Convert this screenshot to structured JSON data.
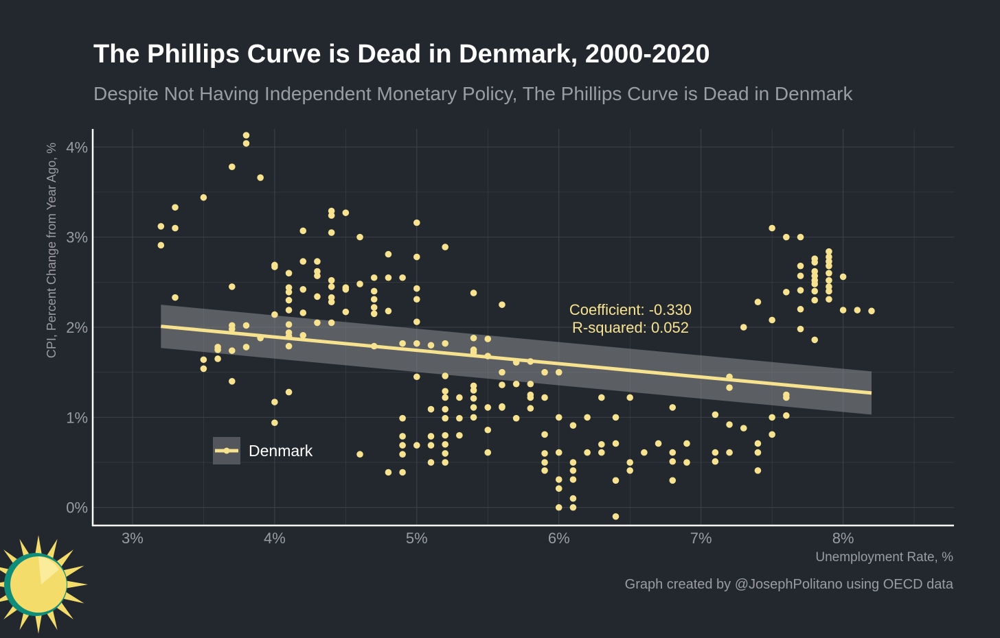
{
  "header": {
    "title": "The Phillips Curve is Dead in Denmark, 2000-2020",
    "subtitle": "Despite Not Having Independent Monetary Policy, The Phillips Curve is Dead in Denmark"
  },
  "footer": {
    "caption": "Graph created by @JosephPolitano using OECD data"
  },
  "logo": {
    "icon": "sun-logo-icon"
  },
  "chart_data": {
    "type": "scatter",
    "xlabel": "Unemployment Rate, %",
    "ylabel": "CPI, Percent Change from Year Ago, %",
    "xlim": [
      2.72,
      8.78
    ],
    "ylim": [
      -0.2,
      4.2
    ],
    "x_ticks": [
      3,
      4,
      5,
      6,
      7,
      8
    ],
    "x_tick_labels": [
      "3%",
      "4%",
      "5%",
      "6%",
      "7%",
      "8%"
    ],
    "y_ticks": [
      0,
      1,
      2,
      3,
      4
    ],
    "y_tick_labels": [
      "0%",
      "1%",
      "2%",
      "3%",
      "4%"
    ],
    "grid": true,
    "colors": {
      "points": "#f7e38f",
      "trend_line": "#f7e38f",
      "confidence_band": "#8a8c8f",
      "annotation_text": "#f7e38f",
      "grid": "#3d424a",
      "tick_text": "#9a9da3",
      "background": "#23272e"
    },
    "legend": {
      "position": "bottom-left",
      "label": "Denmark"
    },
    "annotation": {
      "coefficient": "Coefficient: -0.330",
      "r_squared": "R-squared: 0.052"
    },
    "trend": {
      "x": [
        3.2,
        8.2
      ],
      "y": [
        2.01,
        1.27
      ],
      "band_low": [
        1.77,
        1.03
      ],
      "band_high": [
        2.25,
        1.51
      ]
    },
    "series": [
      {
        "name": "Denmark",
        "points": [
          [
            3.2,
            3.12
          ],
          [
            3.2,
            2.91
          ],
          [
            3.3,
            3.33
          ],
          [
            3.3,
            3.1
          ],
          [
            3.3,
            2.33
          ],
          [
            3.5,
            3.44
          ],
          [
            3.5,
            1.64
          ],
          [
            3.5,
            1.54
          ],
          [
            3.6,
            1.78
          ],
          [
            3.6,
            1.75
          ],
          [
            3.6,
            1.65
          ],
          [
            3.7,
            3.78
          ],
          [
            3.7,
            2.45
          ],
          [
            3.7,
            2.02
          ],
          [
            3.7,
            1.98
          ],
          [
            3.7,
            1.74
          ],
          [
            3.7,
            1.4
          ],
          [
            3.8,
            4.13
          ],
          [
            3.8,
            4.04
          ],
          [
            3.8,
            2.02
          ],
          [
            3.8,
            1.78
          ],
          [
            3.9,
            3.66
          ],
          [
            3.9,
            1.88
          ],
          [
            4.0,
            2.69
          ],
          [
            4.0,
            2.67
          ],
          [
            4.0,
            2.14
          ],
          [
            4.0,
            1.17
          ],
          [
            4.0,
            0.94
          ],
          [
            4.1,
            2.6
          ],
          [
            4.1,
            2.44
          ],
          [
            4.1,
            2.39
          ],
          [
            4.1,
            2.3
          ],
          [
            4.1,
            2.19
          ],
          [
            4.1,
            2.03
          ],
          [
            4.1,
            1.94
          ],
          [
            4.1,
            1.9
          ],
          [
            4.1,
            1.79
          ],
          [
            4.1,
            1.28
          ],
          [
            4.2,
            3.07
          ],
          [
            4.2,
            2.73
          ],
          [
            4.2,
            2.42
          ],
          [
            4.2,
            2.16
          ],
          [
            4.2,
            1.91
          ],
          [
            4.3,
            2.73
          ],
          [
            4.3,
            2.62
          ],
          [
            4.3,
            2.57
          ],
          [
            4.3,
            2.34
          ],
          [
            4.3,
            2.05
          ],
          [
            4.4,
            3.29
          ],
          [
            4.4,
            3.24
          ],
          [
            4.4,
            3.05
          ],
          [
            4.4,
            2.52
          ],
          [
            4.4,
            2.45
          ],
          [
            4.4,
            2.33
          ],
          [
            4.4,
            2.28
          ],
          [
            4.4,
            2.05
          ],
          [
            4.5,
            3.27
          ],
          [
            4.5,
            2.44
          ],
          [
            4.5,
            2.42
          ],
          [
            4.5,
            2.17
          ],
          [
            4.6,
            3.0
          ],
          [
            4.6,
            2.48
          ],
          [
            4.6,
            0.59
          ],
          [
            4.7,
            2.55
          ],
          [
            4.7,
            2.4
          ],
          [
            4.7,
            2.31
          ],
          [
            4.7,
            2.22
          ],
          [
            4.7,
            2.15
          ],
          [
            4.7,
            1.79
          ],
          [
            4.8,
            2.81
          ],
          [
            4.8,
            2.55
          ],
          [
            4.8,
            2.18
          ],
          [
            4.8,
            0.39
          ],
          [
            4.9,
            2.55
          ],
          [
            4.9,
            1.82
          ],
          [
            4.9,
            0.99
          ],
          [
            4.9,
            0.79
          ],
          [
            4.9,
            0.69
          ],
          [
            4.9,
            0.59
          ],
          [
            4.9,
            0.39
          ],
          [
            5.0,
            3.16
          ],
          [
            5.0,
            2.78
          ],
          [
            5.0,
            2.43
          ],
          [
            5.0,
            2.31
          ],
          [
            5.0,
            2.06
          ],
          [
            5.0,
            1.82
          ],
          [
            5.0,
            1.45
          ],
          [
            5.0,
            0.69
          ],
          [
            5.1,
            1.8
          ],
          [
            5.1,
            1.09
          ],
          [
            5.1,
            0.79
          ],
          [
            5.1,
            0.69
          ],
          [
            5.1,
            0.5
          ],
          [
            5.2,
            2.89
          ],
          [
            5.2,
            1.82
          ],
          [
            5.2,
            1.46
          ],
          [
            5.2,
            1.29
          ],
          [
            5.2,
            1.22
          ],
          [
            5.2,
            1.09
          ],
          [
            5.2,
            0.99
          ],
          [
            5.2,
            0.8
          ],
          [
            5.2,
            0.7
          ],
          [
            5.2,
            0.6
          ],
          [
            5.2,
            0.5
          ],
          [
            5.3,
            1.22
          ],
          [
            5.3,
            0.99
          ],
          [
            5.3,
            0.8
          ],
          [
            5.4,
            2.38
          ],
          [
            5.4,
            1.88
          ],
          [
            5.4,
            1.75
          ],
          [
            5.4,
            1.72
          ],
          [
            5.4,
            1.35
          ],
          [
            5.4,
            1.3
          ],
          [
            5.4,
            1.21
          ],
          [
            5.4,
            1.11
          ],
          [
            5.4,
            1.0
          ],
          [
            5.5,
            1.87
          ],
          [
            5.5,
            1.68
          ],
          [
            5.5,
            1.11
          ],
          [
            5.5,
            0.86
          ],
          [
            5.5,
            0.61
          ],
          [
            5.6,
            2.25
          ],
          [
            5.6,
            1.5
          ],
          [
            5.6,
            1.36
          ],
          [
            5.6,
            1.12
          ],
          [
            5.6,
            1.11
          ],
          [
            5.7,
            1.61
          ],
          [
            5.7,
            1.37
          ],
          [
            5.7,
            0.99
          ],
          [
            5.8,
            1.62
          ],
          [
            5.8,
            1.37
          ],
          [
            5.8,
            1.25
          ],
          [
            5.8,
            1.22
          ],
          [
            5.8,
            1.1
          ],
          [
            5.9,
            1.5
          ],
          [
            5.9,
            1.22
          ],
          [
            5.9,
            0.81
          ],
          [
            5.9,
            0.6
          ],
          [
            5.9,
            0.5
          ],
          [
            5.9,
            0.41
          ],
          [
            6.0,
            1.5
          ],
          [
            6.0,
            1.0
          ],
          [
            6.0,
            0.61
          ],
          [
            6.0,
            0.31
          ],
          [
            6.0,
            0.21
          ],
          [
            6.0,
            0.0
          ],
          [
            6.1,
            0.91
          ],
          [
            6.1,
            0.5
          ],
          [
            6.1,
            0.41
          ],
          [
            6.1,
            0.31
          ],
          [
            6.1,
            0.1
          ],
          [
            6.1,
            0.0
          ],
          [
            6.2,
            1.0
          ],
          [
            6.2,
            0.61
          ],
          [
            6.3,
            1.22
          ],
          [
            6.3,
            0.7
          ],
          [
            6.3,
            0.61
          ],
          [
            6.4,
            1.0
          ],
          [
            6.4,
            0.71
          ],
          [
            6.4,
            0.3
          ],
          [
            6.4,
            -0.1
          ],
          [
            6.5,
            1.22
          ],
          [
            6.5,
            0.5
          ],
          [
            6.5,
            0.41
          ],
          [
            6.6,
            0.61
          ],
          [
            6.7,
            0.71
          ],
          [
            6.8,
            1.11
          ],
          [
            6.8,
            0.61
          ],
          [
            6.8,
            0.51
          ],
          [
            6.8,
            0.3
          ],
          [
            6.9,
            0.71
          ],
          [
            6.9,
            0.5
          ],
          [
            7.1,
            1.03
          ],
          [
            7.1,
            0.61
          ],
          [
            7.1,
            0.51
          ],
          [
            7.2,
            1.45
          ],
          [
            7.2,
            1.33
          ],
          [
            7.2,
            0.92
          ],
          [
            7.2,
            0.61
          ],
          [
            7.3,
            2.0
          ],
          [
            7.3,
            0.88
          ],
          [
            7.4,
            2.28
          ],
          [
            7.4,
            0.71
          ],
          [
            7.4,
            0.61
          ],
          [
            7.4,
            0.41
          ],
          [
            7.5,
            3.1
          ],
          [
            7.5,
            2.08
          ],
          [
            7.5,
            1.0
          ],
          [
            7.5,
            0.81
          ],
          [
            7.6,
            3.0
          ],
          [
            7.6,
            2.39
          ],
          [
            7.6,
            1.25
          ],
          [
            7.6,
            1.22
          ],
          [
            7.6,
            1.02
          ],
          [
            7.7,
            3.0
          ],
          [
            7.7,
            2.68
          ],
          [
            7.7,
            2.57
          ],
          [
            7.7,
            2.41
          ],
          [
            7.7,
            2.2
          ],
          [
            7.7,
            1.98
          ],
          [
            7.8,
            2.76
          ],
          [
            7.8,
            2.72
          ],
          [
            7.8,
            2.62
          ],
          [
            7.8,
            2.57
          ],
          [
            7.8,
            2.52
          ],
          [
            7.8,
            2.48
          ],
          [
            7.8,
            2.4
          ],
          [
            7.8,
            2.3
          ],
          [
            7.8,
            1.86
          ],
          [
            7.9,
            2.84
          ],
          [
            7.9,
            2.78
          ],
          [
            7.9,
            2.73
          ],
          [
            7.9,
            2.68
          ],
          [
            7.9,
            2.6
          ],
          [
            7.9,
            2.52
          ],
          [
            7.9,
            2.45
          ],
          [
            7.9,
            2.4
          ],
          [
            7.9,
            2.31
          ],
          [
            8.0,
            2.56
          ],
          [
            8.0,
            2.19
          ],
          [
            8.1,
            2.19
          ],
          [
            8.2,
            2.18
          ]
        ]
      }
    ]
  }
}
